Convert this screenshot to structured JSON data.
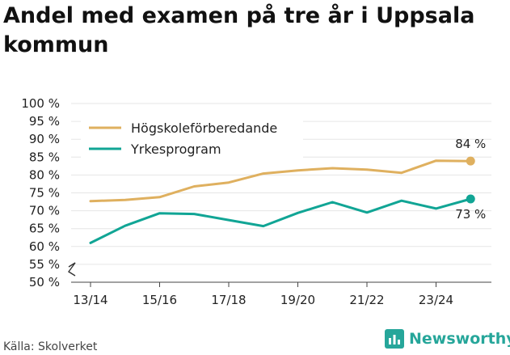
{
  "title": "Andel med examen på tre år i Uppsala kommun",
  "source": "Källa: Skolverket",
  "brand": {
    "name": "Newsworthy",
    "icon": "bar-chart-icon",
    "color": "#26a69a"
  },
  "chart_data": {
    "type": "line",
    "x": [
      "13/14",
      "14/15",
      "15/16",
      "16/17",
      "17/18",
      "18/19",
      "19/20",
      "20/21",
      "21/22",
      "22/23",
      "23/24",
      "24/25"
    ],
    "x_tick_labels": [
      "13/14",
      "15/16",
      "17/18",
      "19/20",
      "21/22",
      "23/24"
    ],
    "ylim": [
      50,
      100
    ],
    "y_tick_labels": [
      "50 %",
      "55 %",
      "60 %",
      "65 %",
      "70 %",
      "75 %",
      "80 %",
      "85 %",
      "90 %",
      "95 %",
      "100 %"
    ],
    "y_axis_break": true,
    "grid": "horizontal",
    "legend_position": "top-left",
    "series": [
      {
        "name": "Högskoleförberedande",
        "color": "#dfb05f",
        "values": [
          72.7,
          73.0,
          73.8,
          76.8,
          77.9,
          80.4,
          81.3,
          81.9,
          81.5,
          80.6,
          84.0,
          83.9
        ],
        "end_label": "84 %"
      },
      {
        "name": "Yrkesprogram",
        "color": "#11a595",
        "values": [
          61.0,
          65.8,
          69.3,
          69.1,
          67.4,
          65.7,
          69.4,
          72.4,
          69.5,
          72.8,
          70.6,
          73.3
        ],
        "end_label": "73 %"
      }
    ]
  }
}
